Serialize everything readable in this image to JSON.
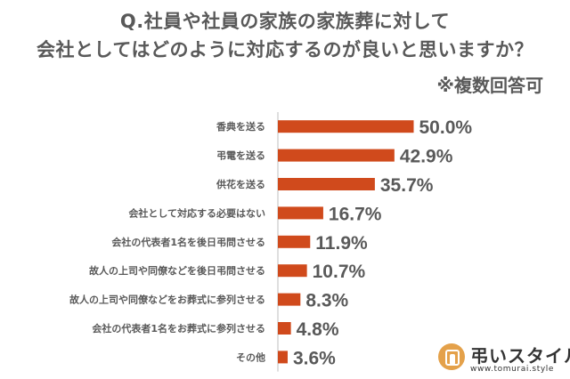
{
  "header": {
    "title_line1": "Q.社員や社員の家族の家族葬に対して",
    "title_line2": "会社としてはどのように対応するのが良いと思いますか？",
    "note": "※複数回答可"
  },
  "colors": {
    "bar": "#d04a1c",
    "text": "#595959",
    "axis": "#bfbfbf"
  },
  "logo": {
    "name": "弔いスタイル",
    "url": "www.tomurai.style",
    "icon": "tomurai-logo-icon"
  },
  "chart_data": {
    "type": "bar",
    "orientation": "horizontal",
    "categories": [
      "香典を送る",
      "弔電を送る",
      "供花を送る",
      "会社として対応する必要はない",
      "会社の代表者1名を後日弔問させる",
      "故人の上司や同僚などを後日弔問させる",
      "故人の上司や同僚などをお葬式に参列させる",
      "会社の代表者1名をお葬式に参列させる",
      "その他"
    ],
    "values": [
      50.0,
      42.9,
      35.7,
      16.7,
      11.9,
      10.7,
      8.3,
      4.8,
      3.6
    ],
    "value_labels": [
      "50.0%",
      "42.9%",
      "35.7%",
      "16.7%",
      "11.9%",
      "10.7%",
      "8.3%",
      "4.8%",
      "3.6%"
    ],
    "unit": "%",
    "xlim": [
      0,
      100
    ],
    "grid": false,
    "legend": "none"
  }
}
